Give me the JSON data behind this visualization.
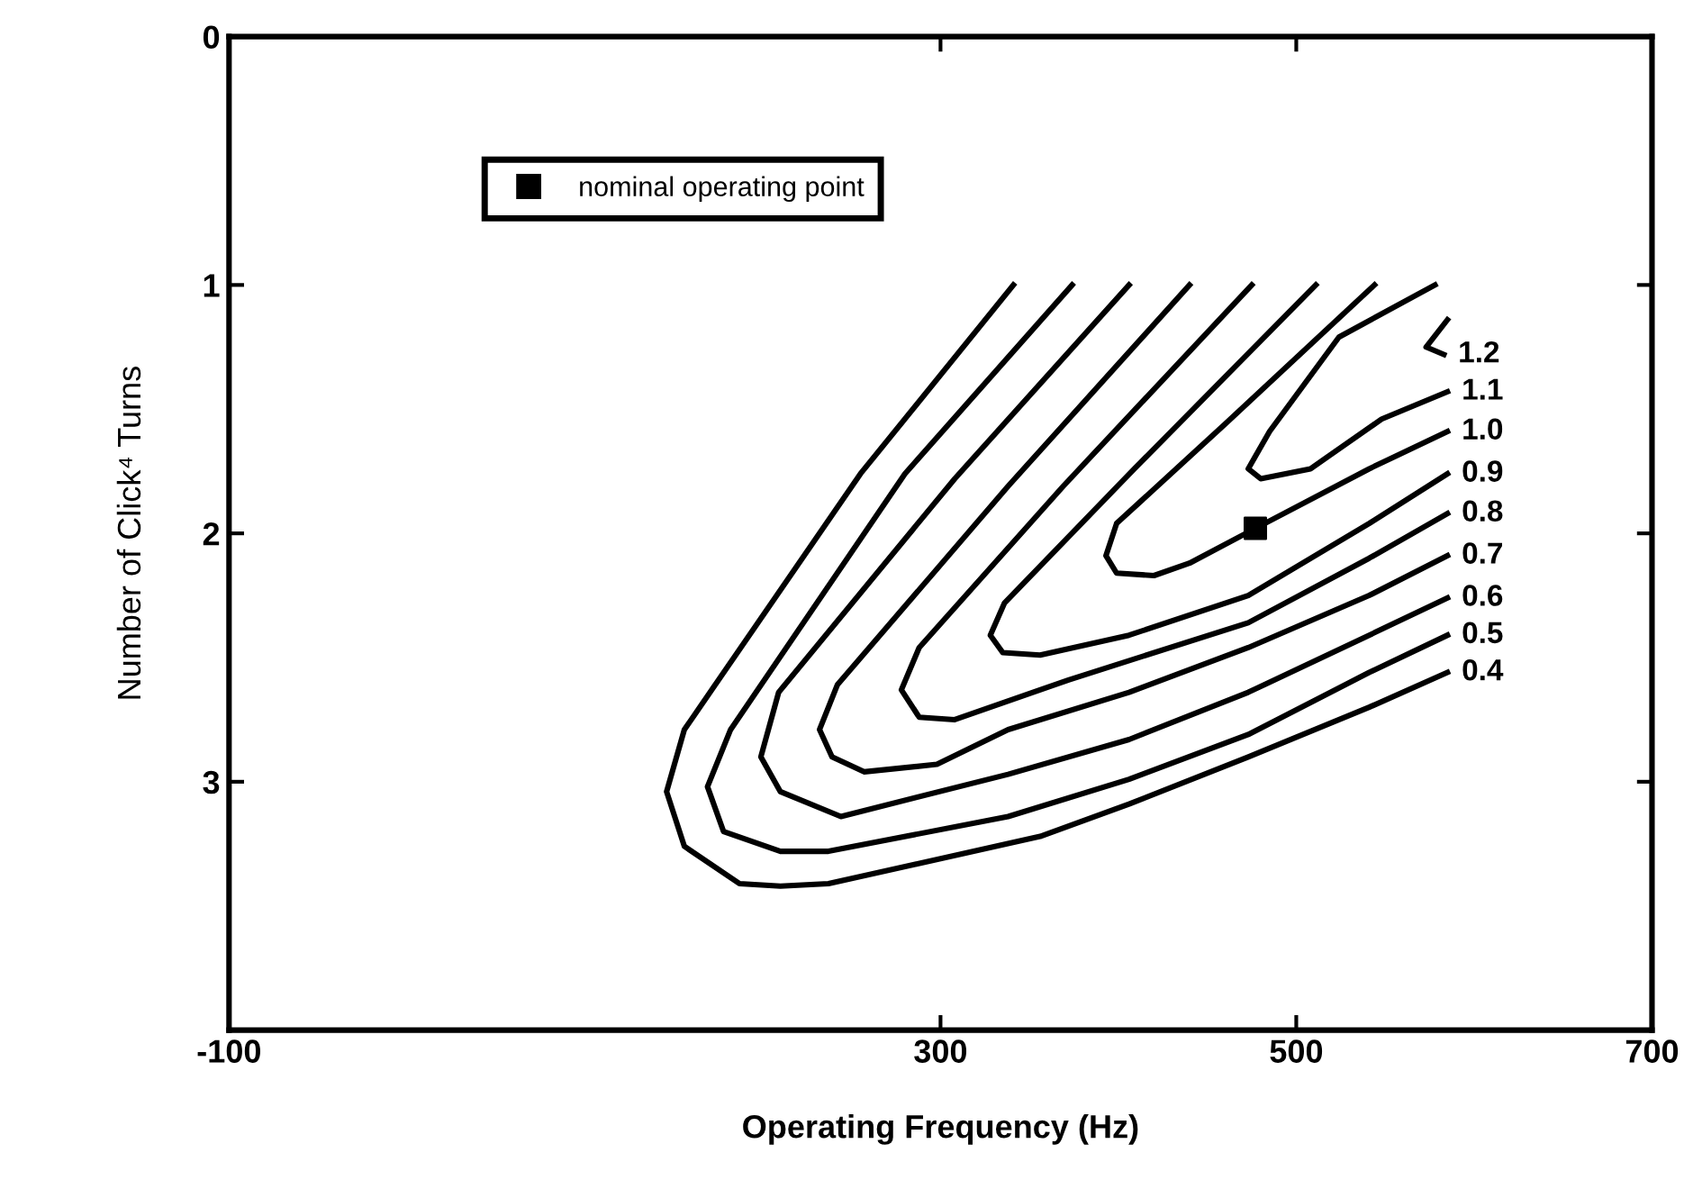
{
  "chart_data": {
    "type": "line",
    "xlabel": "Operating Frequency (Hz)",
    "ylabel": "Number of Click⁴ Turns",
    "xlim": [
      -100,
      700
    ],
    "xticks": [
      -100,
      300,
      500,
      700
    ],
    "ylim": [
      4,
      0
    ],
    "yticks": [
      0,
      1,
      2,
      3
    ],
    "grid": false,
    "legend": "top left",
    "marker": "none",
    "line_style": "solid",
    "series": [
      {
        "name": "1.2",
        "color": "#000000",
        "x": [
          585,
          573,
          583
        ],
        "values": [
          1.14,
          1.25,
          1.28
        ]
      },
      {
        "name": "1.1",
        "color": "#000000",
        "x": [
          578,
          524,
          485,
          473,
          480,
          508,
          548,
          585
        ],
        "values": [
          1.0,
          1.21,
          1.59,
          1.74,
          1.78,
          1.74,
          1.54,
          1.43
        ]
      },
      {
        "name": "1.0",
        "color": "#000000",
        "x": [
          544,
          460,
          399,
          393,
          399,
          420,
          440,
          477,
          541,
          585
        ],
        "values": [
          1.0,
          1.56,
          1.96,
          2.09,
          2.16,
          2.17,
          2.12,
          1.98,
          1.74,
          1.59
        ]
      },
      {
        "name": "0.9",
        "color": "#000000",
        "x": [
          511,
          409,
          336,
          328,
          335,
          356,
          406,
          473,
          541,
          585
        ],
        "values": [
          1.0,
          1.74,
          2.28,
          2.41,
          2.48,
          2.49,
          2.41,
          2.25,
          1.96,
          1.76
        ]
      },
      {
        "name": "0.8",
        "color": "#000000",
        "x": [
          475,
          369,
          288,
          278,
          288,
          308,
          372,
          473,
          541,
          585
        ],
        "values": [
          1.0,
          1.81,
          2.46,
          2.63,
          2.74,
          2.75,
          2.59,
          2.36,
          2.1,
          1.92
        ]
      },
      {
        "name": "0.7",
        "color": "#000000",
        "x": [
          440,
          338,
          242,
          232,
          239,
          257,
          298,
          338,
          406,
          473,
          541,
          585
        ],
        "values": [
          1.0,
          1.81,
          2.61,
          2.79,
          2.9,
          2.96,
          2.93,
          2.79,
          2.64,
          2.46,
          2.25,
          2.09
        ]
      },
      {
        "name": "0.6",
        "color": "#000000",
        "x": [
          406,
          308,
          209,
          199,
          210,
          244,
          338,
          406,
          473,
          541,
          585
        ],
        "values": [
          1.0,
          1.78,
          2.64,
          2.9,
          3.04,
          3.14,
          2.97,
          2.83,
          2.64,
          2.41,
          2.26
        ]
      },
      {
        "name": "0.5",
        "color": "#000000",
        "x": [
          374,
          280,
          182,
          169,
          178,
          210,
          237,
          338,
          406,
          473,
          541,
          585
        ],
        "values": [
          1.0,
          1.76,
          2.79,
          3.02,
          3.2,
          3.28,
          3.28,
          3.14,
          2.99,
          2.81,
          2.56,
          2.41
        ]
      },
      {
        "name": "0.4",
        "color": "#000000",
        "x": [
          341,
          255,
          156,
          146,
          156,
          187,
          210,
          237,
          356,
          406,
          473,
          541,
          585
        ],
        "values": [
          1.0,
          1.76,
          2.79,
          3.04,
          3.26,
          3.41,
          3.42,
          3.41,
          3.22,
          3.09,
          2.9,
          2.7,
          2.56
        ]
      },
      {
        "name": "nominal operating point",
        "type": "scatter",
        "marker": "square",
        "color": "#000000",
        "x": [
          477
        ],
        "values": [
          1.98
        ]
      }
    ]
  }
}
